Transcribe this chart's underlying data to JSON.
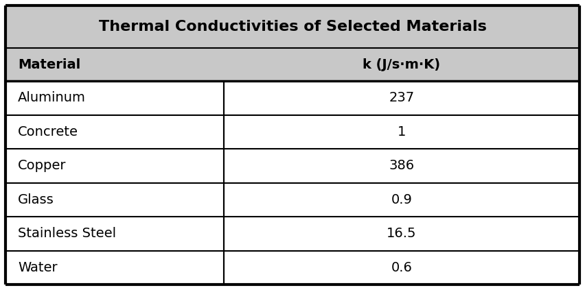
{
  "title": "Thermal Conductivities of Selected Materials",
  "col_headers": [
    "Material",
    "k (J/s·m·K)"
  ],
  "rows": [
    [
      "Aluminum",
      "237"
    ],
    [
      "Concrete",
      "1"
    ],
    [
      "Copper",
      "386"
    ],
    [
      "Glass",
      "0.9"
    ],
    [
      "Stainless Steel",
      "16.5"
    ],
    [
      "Water",
      "0.6"
    ]
  ],
  "title_fontsize": 16,
  "header_fontsize": 14,
  "cell_fontsize": 14,
  "title_bg": "#c8c8c8",
  "header_bg": "#c8c8c8",
  "cell_bg": "#ffffff",
  "border_color": "#000000",
  "text_color": "#000000",
  "col_split": 0.38,
  "outer_border_lw": 3.0,
  "inner_border_lw": 1.5,
  "thick_border_lw": 2.5
}
